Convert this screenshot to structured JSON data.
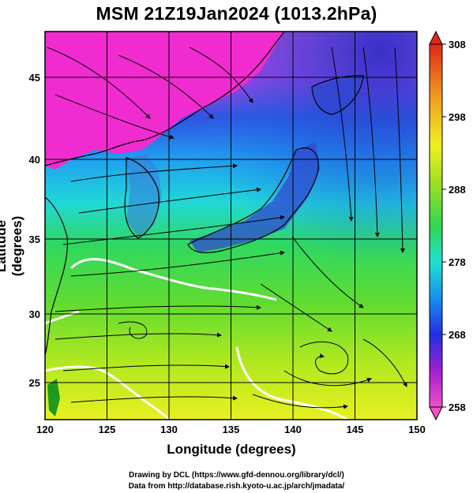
{
  "title": "MSM 21Z19Jan2024 (1013.2hPa)",
  "x_axis": {
    "label": "Longitude (degrees)",
    "range": [
      120,
      150
    ],
    "ticks": [
      120,
      125,
      130,
      135,
      140,
      145,
      150
    ]
  },
  "y_axis": {
    "label": "Latitude  (degrees)",
    "range": [
      22.5,
      48
    ],
    "ticks": [
      25,
      30,
      35,
      40,
      45
    ]
  },
  "colorbar": {
    "ticks": [
      258,
      268,
      278,
      288,
      298,
      308
    ],
    "range": [
      258,
      308
    ],
    "colors": [
      "#f050c8",
      "#9020d0",
      "#2038e0",
      "#20b0f0",
      "#20e0c0",
      "#30d850",
      "#a0e020",
      "#f0f020",
      "#f0a020",
      "#e03020"
    ]
  },
  "credits": {
    "line1": "Drawing by DCL (https://www.gfd-dennou.org/library/dcl/)",
    "line2": "Data from http://database.rish.kyoto-u.ac.jp/arch/jmadata/"
  },
  "colors": {
    "land": "#1f9a1f",
    "contour": "#ffffff",
    "streamline": "#000000"
  }
}
